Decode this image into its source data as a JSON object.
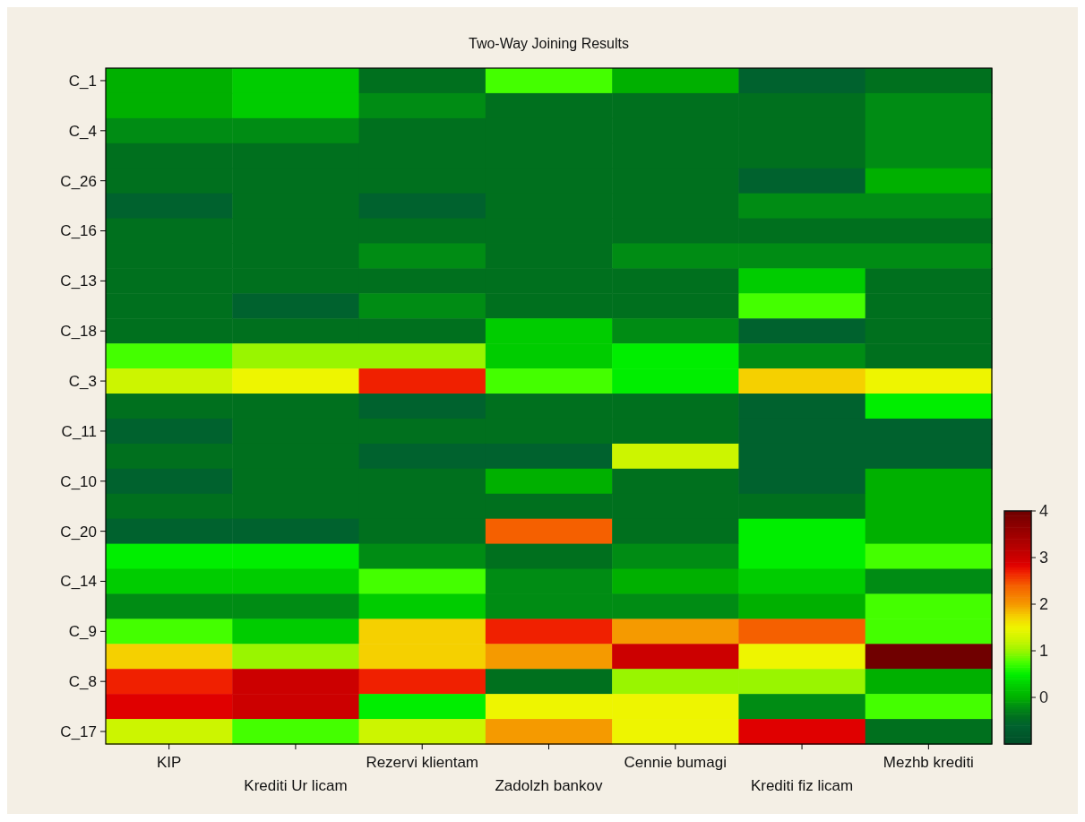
{
  "chart_data": {
    "type": "heatmap",
    "title": "Two-Way Joining Results",
    "categories": [
      "KIP",
      "Krediti Ur licam",
      "Rezervi klientam",
      "Zadolzh bankov",
      "Cennie bumagi",
      "Krediti fiz licam",
      "Mezhb krediti"
    ],
    "y_categories": [
      "C_1",
      null,
      "C_4",
      null,
      "C_26",
      null,
      "C_16",
      null,
      "C_13",
      null,
      "C_18",
      null,
      "C_3",
      null,
      "C_11",
      null,
      "C_10",
      null,
      "C_20",
      null,
      "C_14",
      null,
      "C_9",
      null,
      "C_8",
      null,
      "C_17"
    ],
    "cells": [
      [
        0,
        0.25,
        -0.4,
        0.75,
        0,
        -0.6,
        -0.4
      ],
      [
        0,
        0.25,
        -0.2,
        -0.4,
        -0.4,
        -0.4,
        -0.2
      ],
      [
        -0.2,
        -0.2,
        -0.4,
        -0.4,
        -0.4,
        -0.4,
        -0.2
      ],
      [
        -0.4,
        -0.4,
        -0.4,
        -0.4,
        -0.4,
        -0.4,
        -0.2
      ],
      [
        -0.4,
        -0.4,
        -0.4,
        -0.4,
        -0.4,
        -0.6,
        0
      ],
      [
        -0.6,
        -0.4,
        -0.6,
        -0.4,
        -0.4,
        -0.2,
        -0.2
      ],
      [
        -0.4,
        -0.4,
        -0.4,
        -0.4,
        -0.4,
        -0.4,
        -0.4
      ],
      [
        -0.4,
        -0.4,
        -0.2,
        -0.4,
        -0.2,
        -0.2,
        -0.2
      ],
      [
        -0.4,
        -0.4,
        -0.4,
        -0.4,
        -0.4,
        0.25,
        -0.4
      ],
      [
        -0.4,
        -0.6,
        -0.2,
        -0.4,
        -0.4,
        0.75,
        -0.4
      ],
      [
        -0.4,
        -0.4,
        -0.4,
        0.25,
        -0.2,
        -0.6,
        -0.4
      ],
      [
        0.75,
        1,
        1,
        0.25,
        0.5,
        -0.2,
        -0.4
      ],
      [
        1.25,
        1.5,
        2.7,
        0.75,
        0.5,
        1.75,
        1.5
      ],
      [
        -0.4,
        -0.4,
        -0.6,
        -0.4,
        -0.4,
        -0.6,
        0.5
      ],
      [
        -0.6,
        -0.4,
        -0.4,
        -0.4,
        -0.4,
        -0.6,
        -0.6
      ],
      [
        -0.4,
        -0.4,
        -0.6,
        -0.6,
        1.25,
        -0.6,
        -0.6
      ],
      [
        -0.6,
        -0.4,
        -0.4,
        0,
        -0.4,
        -0.6,
        0
      ],
      [
        -0.4,
        -0.4,
        -0.4,
        -0.4,
        -0.4,
        -0.4,
        0
      ],
      [
        -0.6,
        -0.6,
        -0.4,
        2.4,
        -0.4,
        0.5,
        0
      ],
      [
        0.5,
        0.5,
        -0.2,
        -0.4,
        -0.2,
        0.5,
        0.75
      ],
      [
        0.25,
        0.25,
        0.75,
        -0.2,
        0,
        0.25,
        -0.2
      ],
      [
        -0.2,
        -0.2,
        0.25,
        -0.2,
        -0.2,
        0,
        0.75
      ],
      [
        0.75,
        0.25,
        1.75,
        2.7,
        2,
        2.4,
        0.75
      ],
      [
        1.75,
        1,
        1.75,
        2,
        3,
        1.5,
        4
      ],
      [
        2.7,
        3,
        2.7,
        -0.4,
        1,
        1,
        0
      ],
      [
        2.85,
        3,
        0.5,
        1.5,
        1.5,
        -0.2,
        0.75
      ],
      [
        1.25,
        0.75,
        1.25,
        2,
        1.5,
        2.85,
        -0.4
      ]
    ],
    "clim": [
      -1,
      4
    ],
    "cticks": [
      0,
      1,
      2,
      3,
      4
    ]
  }
}
